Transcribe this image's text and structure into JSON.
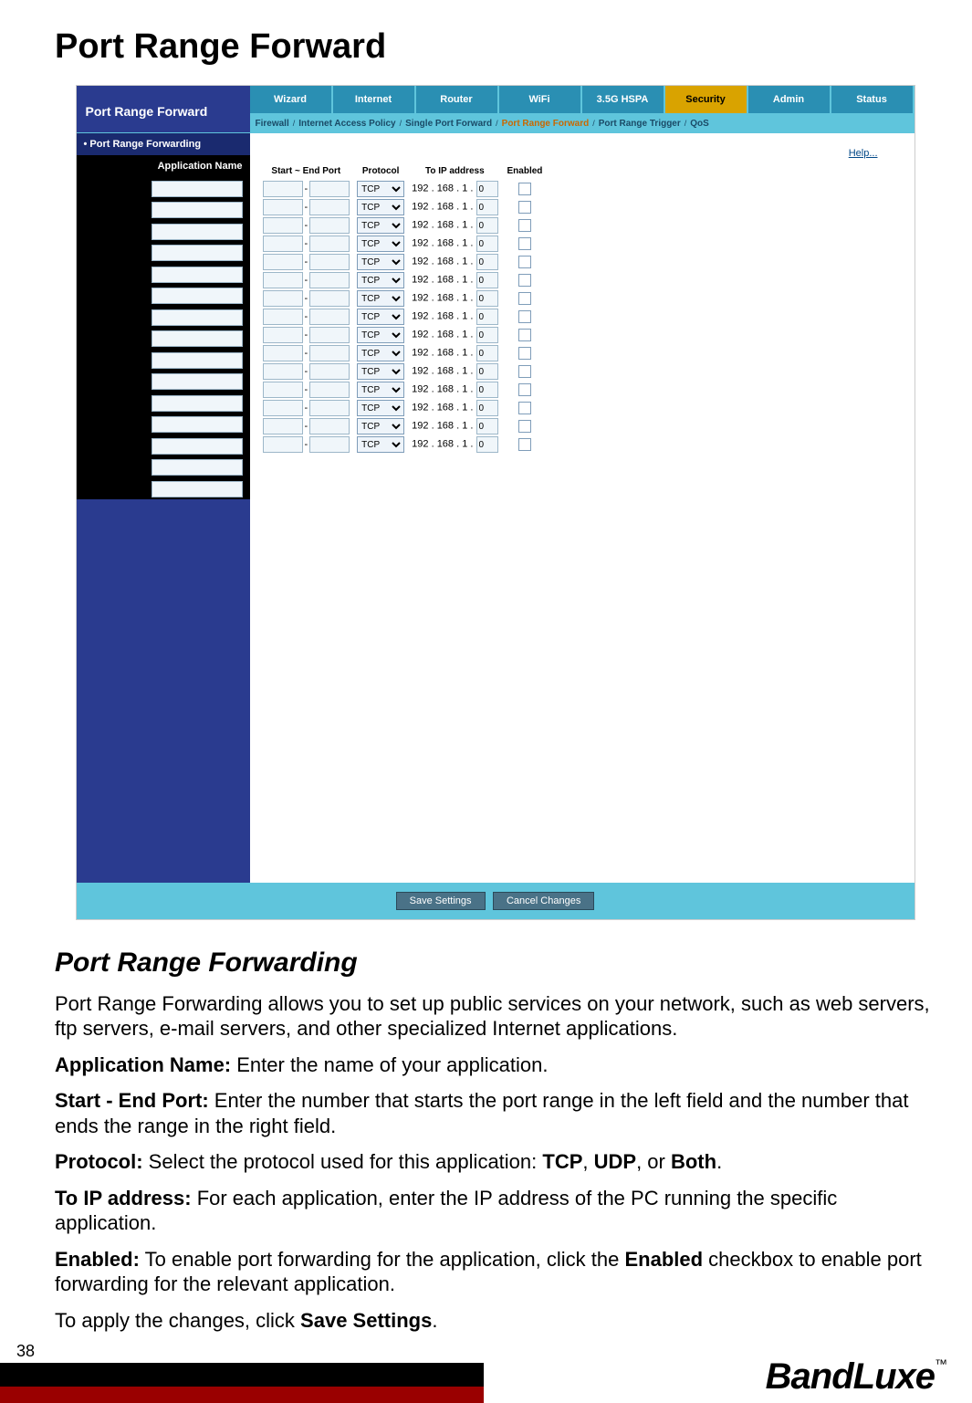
{
  "page": {
    "title": "Port Range Forward",
    "page_number": "38",
    "brand": "BandLuxe",
    "tm": "™"
  },
  "screenshot": {
    "title": "Port Range Forward",
    "tabs": [
      "Wizard",
      "Internet",
      "Router",
      "WiFi",
      "3.5G HSPA",
      "Security",
      "Admin",
      "Status"
    ],
    "active_tab": "Security",
    "subtabs": [
      "Firewall",
      "Internet Access Policy",
      "Single Port Forward",
      "Port Range Forward",
      "Port Range Trigger",
      "QoS"
    ],
    "active_subtab": "Port Range Forward",
    "sidebar_top": "Port Range Forwarding",
    "sidebar_sub": "Application Name",
    "help_label": "Help...",
    "columns": {
      "port": "Start ~ End Port",
      "protocol": "Protocol",
      "ip": "To IP address",
      "enabled": "Enabled"
    },
    "protocol_option": "TCP",
    "ip_prefix": "192 . 168 . 1 . ",
    "ip_last": "0",
    "row_count": 15,
    "buttons": {
      "save": "Save Settings",
      "cancel": "Cancel Changes"
    }
  },
  "content": {
    "section_title": "Port Range Forwarding",
    "p1": "Port Range Forwarding allows you to set up public services on your network, such as web servers, ftp servers, e-mail servers, and other specialized Internet applications.",
    "p2_b": "Application Name:",
    "p2": " Enter the name of your application.",
    "p3_b": "Start - End Port:",
    "p3": " Enter the number that starts the port range in the left field and the number that ends the range in the right field.",
    "p4_b": "Protocol:",
    "p4_a": " Select the protocol used for this application: ",
    "p4_tcp": "TCP",
    "p4_c": ", ",
    "p4_udp": "UDP",
    "p4_d": ", or ",
    "p4_both": "Both",
    "p4_e": ".",
    "p5_b": "To IP address:",
    "p5": " For each application, enter the IP address of the PC running the specific application.",
    "p6_b": "Enabled:",
    "p6_a": " To enable port forwarding for the application, click the ",
    "p6_en": "Enabled",
    "p6_b2": " checkbox to enable port forwarding for the relevant application.",
    "p7_a": "To apply the changes, click ",
    "p7_b": "Save Settings",
    "p7_c": "."
  }
}
